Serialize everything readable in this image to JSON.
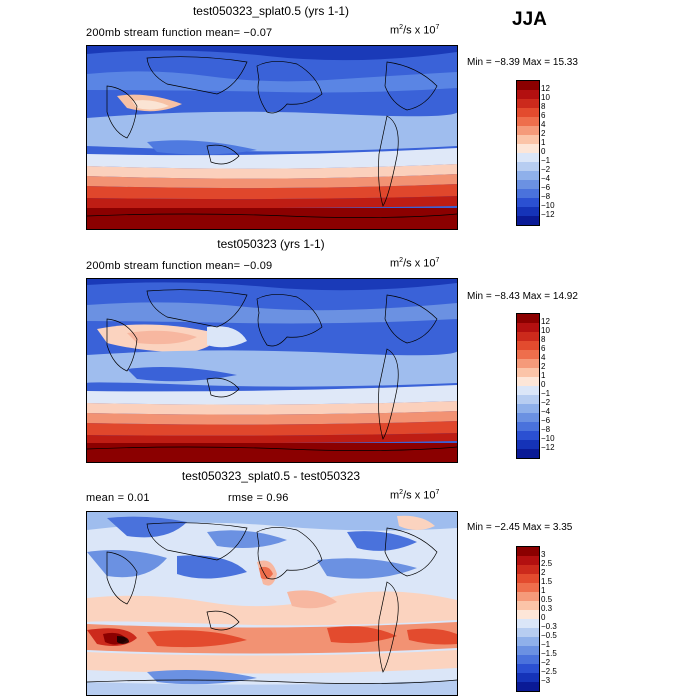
{
  "season": "JJA",
  "panels": [
    {
      "title": "test050323_splat0.5 (yrs 1-1)",
      "left_text": "200mb stream function  mean=  −0.07",
      "units_base": "m",
      "units_exp": "2",
      "units_mid": "/s x 10",
      "units_exp2": "7",
      "minmax": "Min =  −8.39  Max =  15.33",
      "colorbar_labels": [
        "12",
        "10",
        "8",
        "6",
        "4",
        "2",
        "1",
        "0",
        "−1",
        "−2",
        "−4",
        "−6",
        "−8",
        "−10",
        "−12"
      ],
      "colorbar_colors": [
        "#8b0000",
        "#b31010",
        "#cc2a1c",
        "#e34b2e",
        "#ee6e4c",
        "#f59a7a",
        "#fbc4a8",
        "#fde6d8",
        "#dbe6f8",
        "#b7cdf1",
        "#8fb0ea",
        "#6b91e2",
        "#4a72dc",
        "#2b50d2",
        "#1533b8",
        "#0a1a96"
      ]
    },
    {
      "title": "test050323 (yrs 1-1)",
      "left_text": "200mb stream function  mean=  −0.09",
      "units_base": "m",
      "units_exp": "2",
      "units_mid": "/s x 10",
      "units_exp2": "7",
      "minmax": "Min =  −8.43  Max =  14.92",
      "colorbar_labels": [
        "12",
        "10",
        "8",
        "6",
        "4",
        "2",
        "1",
        "0",
        "−1",
        "−2",
        "−4",
        "−6",
        "−8",
        "−10",
        "−12"
      ],
      "colorbar_colors": [
        "#8b0000",
        "#b31010",
        "#cc2a1c",
        "#e34b2e",
        "#ee6e4c",
        "#f59a7a",
        "#fbc4a8",
        "#fde6d8",
        "#dbe6f8",
        "#b7cdf1",
        "#8fb0ea",
        "#6b91e2",
        "#4a72dc",
        "#2b50d2",
        "#1533b8",
        "#0a1a96"
      ]
    },
    {
      "title": "test050323_splat0.5 - test050323",
      "left_text": "mean =    0.01",
      "mid_text": "rmse =    0.96",
      "units_base": "m",
      "units_exp": "2",
      "units_mid": "/s x 10",
      "units_exp2": "7",
      "minmax": "Min =  −2.45  Max =   3.35",
      "colorbar_labels": [
        "3",
        "2.5",
        "2",
        "1.5",
        "1",
        "0.5",
        "0.3",
        "0",
        "−0.3",
        "−0.5",
        "−1",
        "−1.5",
        "−2",
        "−2.5",
        "−3"
      ],
      "colorbar_colors": [
        "#8b0000",
        "#b31010",
        "#cc2a1c",
        "#e34b2e",
        "#ee6e4c",
        "#f59a7a",
        "#fbc4a8",
        "#fde6d8",
        "#dbe6f8",
        "#b7cdf1",
        "#8fb0ea",
        "#6b91e2",
        "#4a72dc",
        "#2b50d2",
        "#1533b8",
        "#0a1a96"
      ]
    }
  ]
}
